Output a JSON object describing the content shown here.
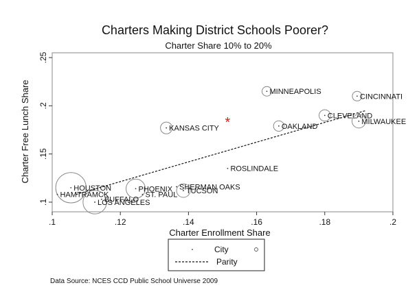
{
  "chart_data": {
    "type": "scatter",
    "title": "Charters Making District Schools Poorer?",
    "subtitle": "Charter Share 10% to 20%",
    "xlabel": "Charter Enrollment Share",
    "ylabel": "Charter Free Lunch Share",
    "xlim": [
      0.1,
      0.2
    ],
    "ylim": [
      0.09,
      0.255
    ],
    "x_ticks": [
      0.1,
      0.12,
      0.14,
      0.16,
      0.18,
      0.2
    ],
    "x_tick_labels": [
      ".1",
      ".12",
      ".14",
      ".16",
      ".18",
      ".2"
    ],
    "y_ticks": [
      0.1,
      0.15,
      0.2,
      0.25
    ],
    "y_tick_labels": [
      ".1",
      ".15",
      ".2",
      ".25"
    ],
    "grid": false,
    "points": [
      {
        "label": "MINNEAPOLIS",
        "x": 0.163,
        "y": 0.215,
        "size": 1
      },
      {
        "label": "CINCINNATI",
        "x": 0.1895,
        "y": 0.21,
        "size": 1
      },
      {
        "label": "CLEVELAND",
        "x": 0.18,
        "y": 0.19,
        "size": 1.4
      },
      {
        "label": "MILWAUKEE",
        "x": 0.19,
        "y": 0.184,
        "size": 2
      },
      {
        "label": "OAKLAND",
        "x": 0.1665,
        "y": 0.179,
        "size": 1.2
      },
      {
        "label": "KANSAS CITY",
        "x": 0.1335,
        "y": 0.177,
        "size": 1.5
      },
      {
        "label": "ROSLINDALE",
        "x": 0.1515,
        "y": 0.135,
        "size": 0
      },
      {
        "label": "HOUSTON",
        "x": 0.1055,
        "y": 0.115,
        "size": 10
      },
      {
        "label": "SHERMAN OAKS",
        "x": 0.1365,
        "y": 0.116,
        "size": 0
      },
      {
        "label": "PHOENIX",
        "x": 0.1245,
        "y": 0.114,
        "size": 4
      },
      {
        "label": "TUCSON",
        "x": 0.1385,
        "y": 0.112,
        "size": 2
      },
      {
        "label": "ST. PAUL",
        "x": 0.1265,
        "y": 0.108,
        "size": 0
      },
      {
        "label": "HAMTRAMCK",
        "x": 0.1015,
        "y": 0.108,
        "size": 0
      },
      {
        "label": "BUFFALO",
        "x": 0.1145,
        "y": 0.103,
        "size": 0
      },
      {
        "label": "LOS ANGELES",
        "x": 0.1125,
        "y": 0.1,
        "size": 6
      }
    ],
    "highlight_marker": {
      "symbol": "*",
      "x": 0.1515,
      "y": 0.184,
      "color": "#d62020"
    },
    "parity_line": {
      "x": [
        0.107,
        0.192
      ],
      "y": [
        0.108,
        0.195
      ]
    },
    "legend": {
      "placement": "bottom",
      "entries": [
        {
          "label": "City",
          "marker": "circle"
        },
        {
          "label": "Parity",
          "marker": "dashed-line"
        }
      ]
    },
    "note": "Data Source: NCES CCD Public School Universe 2009"
  }
}
